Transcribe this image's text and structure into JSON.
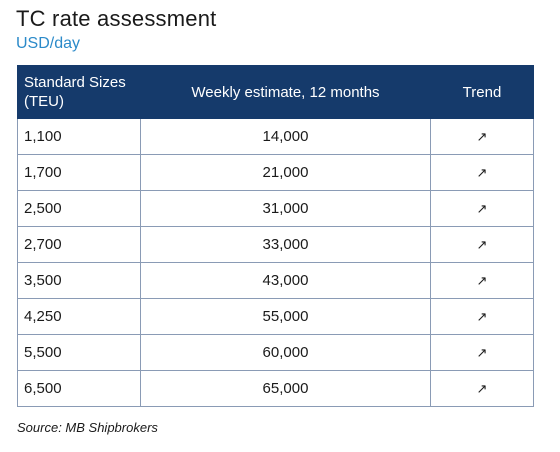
{
  "title": "TC rate assessment",
  "subtitle": "USD/day",
  "table": {
    "headers": {
      "size_line1": "Standard Sizes",
      "size_line2": "(TEU)",
      "estimate": "Weekly estimate, 12 months",
      "trend": "Trend"
    },
    "rows": [
      {
        "size": "1,100",
        "estimate": "14,000",
        "trend": "↗"
      },
      {
        "size": "1,700",
        "estimate": "21,000",
        "trend": "↗"
      },
      {
        "size": "2,500",
        "estimate": "31,000",
        "trend": "↗"
      },
      {
        "size": "2,700",
        "estimate": "33,000",
        "trend": "↗"
      },
      {
        "size": "3,500",
        "estimate": "43,000",
        "trend": "↗"
      },
      {
        "size": "4,250",
        "estimate": "55,000",
        "trend": "↗"
      },
      {
        "size": "5,500",
        "estimate": "60,000",
        "trend": "↗"
      },
      {
        "size": "6,500",
        "estimate": "65,000",
        "trend": "↗"
      }
    ]
  },
  "source": "Source: MB Shipbrokers",
  "colors": {
    "header_bg": "#153a6b",
    "subtitle": "#2b8ac9",
    "border": "#8a9bb5"
  }
}
